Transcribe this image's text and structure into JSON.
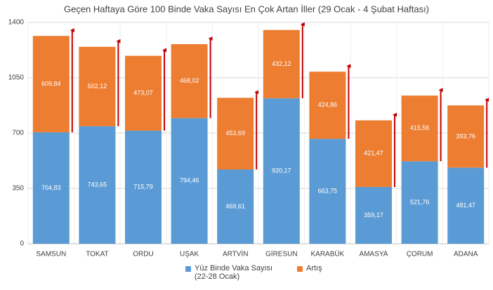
{
  "chart_data": {
    "type": "stacked_bar",
    "title": "Geçen Haftaya Göre 100 Binde Vaka Sayısı En Çok Artan İller (29 Ocak - 4 Şubat Haftası)",
    "categories": [
      "SAMSUN",
      "TOKAT",
      "ORDU",
      "UŞAK",
      "ARTVİN",
      "GİRESUN",
      "KARABÜK",
      "AMASYA",
      "ÇORUM",
      "ADANA"
    ],
    "series": [
      {
        "name": "Yüz Binde Vaka Sayısı (22-28 Ocak)",
        "color": "#5b9bd5",
        "values": [
          704.83,
          743.65,
          715.79,
          794.46,
          469.61,
          920.17,
          663.75,
          359.17,
          521.76,
          481.47
        ],
        "value_labels": [
          "704,83",
          "743,65",
          "715,79",
          "794,46",
          "469,61",
          "920,17",
          "663,75",
          "359,17",
          "521,76",
          "481,47"
        ]
      },
      {
        "name": "Artış",
        "color": "#ed7d31",
        "values": [
          609.84,
          502.12,
          473.07,
          468.02,
          453.69,
          432.12,
          424.86,
          421.47,
          415.56,
          393.76
        ],
        "value_labels": [
          "609,84",
          "502,12",
          "473,07",
          "468,02",
          "453,69",
          "432,12",
          "424,86",
          "421,47",
          "415,56",
          "393,76"
        ]
      }
    ],
    "ylim": [
      0,
      1400
    ],
    "yticks": [
      0,
      350,
      700,
      1050,
      1400
    ],
    "grid": true,
    "arrow_color": "#c00000"
  }
}
